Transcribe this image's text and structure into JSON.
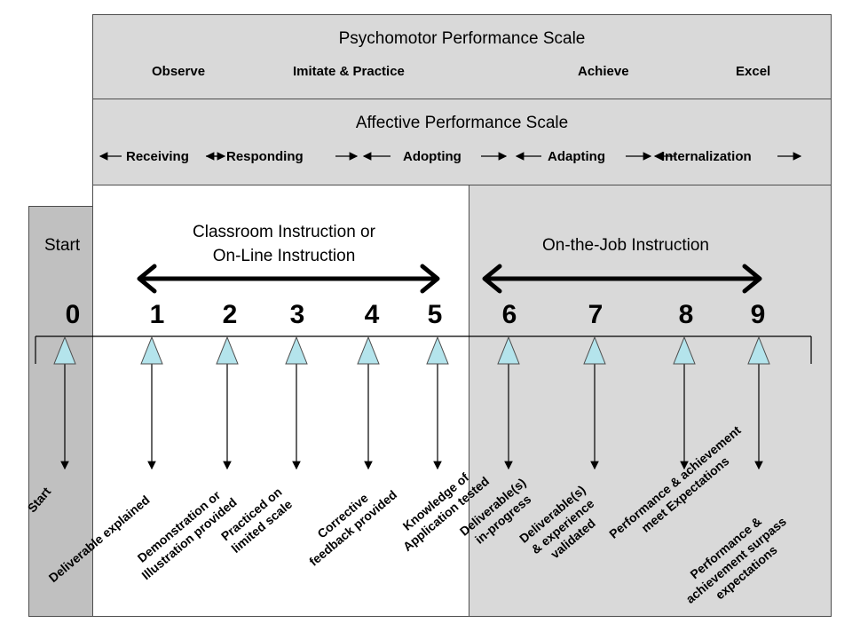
{
  "psychomotor": {
    "title": "Psychomotor Performance Scale",
    "levels": [
      "Observe",
      "Imitate & Practice",
      "Achieve",
      "Excel"
    ]
  },
  "affective": {
    "title": "Affective Performance Scale",
    "levels": [
      "Receiving",
      "Responding",
      "Adopting",
      "Adapting",
      "Internalization"
    ]
  },
  "regions": {
    "start": "Start",
    "classroom": "Classroom Instruction or\nOn-Line Instruction",
    "onjob": "On-the-Job Instruction"
  },
  "scale_numbers": [
    "0",
    "1",
    "2",
    "3",
    "4",
    "5",
    "6",
    "7",
    "8",
    "9"
  ],
  "steps": [
    "Start",
    "Deliverable explained",
    "Demonstration or\nIllustration provided",
    "Practiced on\nlimited scale",
    "Corrective\nfeedback provided",
    "Knowledge of\nApplication tested",
    "Deliverable(s)\nin-progress",
    "Deliverable(s)\n& experience\nvalidated",
    "Performance & achievement\nmeet Expectations",
    "Performance &\nachievement surpass\nexpectations"
  ],
  "colors": {
    "band_fill": "#d9d9d9",
    "start_fill": "#c0c0c0",
    "onjob_fill": "#d9d9d9",
    "triangle_fill": "#b4e4ec",
    "triangle_stroke": "#4d4d4d"
  }
}
